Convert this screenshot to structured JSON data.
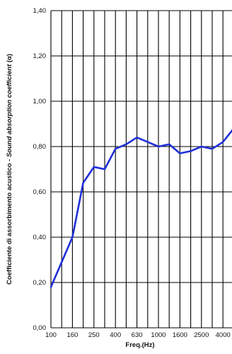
{
  "chart_data": {
    "type": "line",
    "title": "",
    "xlabel": "Freq.(Hz)",
    "ylabel_parts": [
      {
        "text": "Coefficiente di assorbimento acustico - ",
        "italic": false
      },
      {
        "text": "Sound absorption coefficient",
        "italic": true
      },
      {
        "text": " (α)",
        "italic": false
      }
    ],
    "ylim": [
      0,
      1.4
    ],
    "y_ticks": [
      "0,00",
      "0,20",
      "0,40",
      "0,60",
      "0,80",
      "1,00",
      "1,20",
      "1,40"
    ],
    "x_categories": [
      "100",
      "125",
      "160",
      "200",
      "250",
      "315",
      "400",
      "500",
      "630",
      "800",
      "1000",
      "1250",
      "1600",
      "2000",
      "2500",
      "3150",
      "4000",
      "5000"
    ],
    "x_tick_labels": [
      "100",
      "160",
      "250",
      "400",
      "630",
      "1000",
      "1600",
      "2500",
      "4000"
    ],
    "grid": true,
    "series": [
      {
        "color": "#1f2fd8",
        "values": [
          0.18,
          0.29,
          0.4,
          0.64,
          0.71,
          0.7,
          0.79,
          0.81,
          0.84,
          0.82,
          0.8,
          0.81,
          0.77,
          0.78,
          0.8,
          0.79,
          0.82,
          0.88
        ]
      }
    ]
  }
}
